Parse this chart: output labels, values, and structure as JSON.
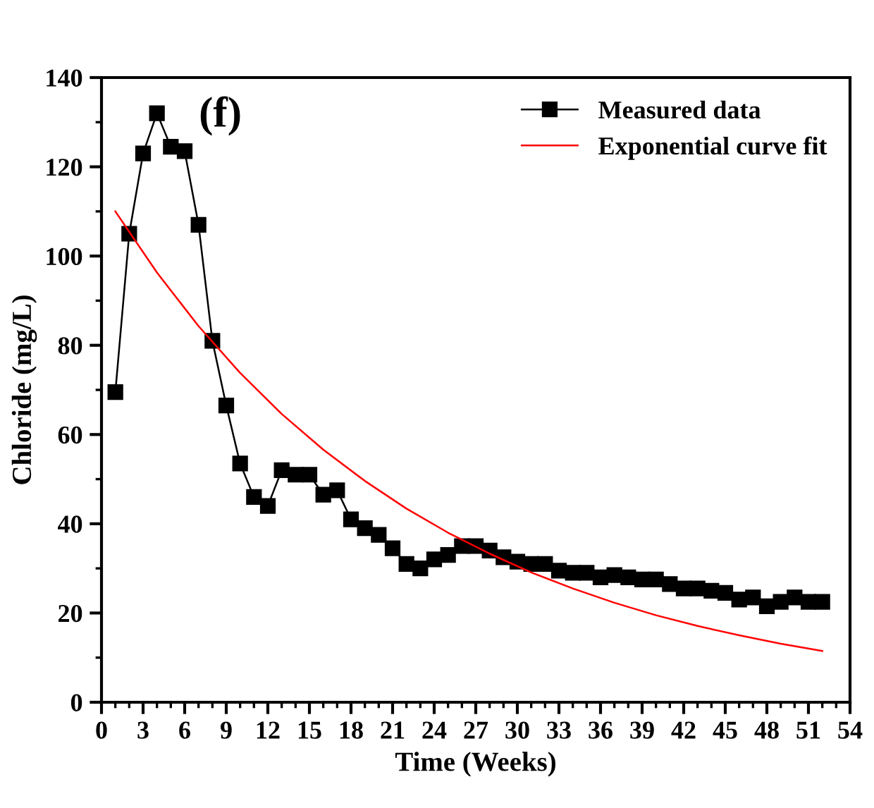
{
  "chart_data": {
    "type": "line",
    "xlabel": "Time (Weeks)",
    "ylabel": "Chloride (mg/L)",
    "annotations": [
      "(f)"
    ],
    "xlim": [
      0,
      54
    ],
    "xticks": [
      0,
      3,
      6,
      9,
      12,
      15,
      18,
      21,
      24,
      27,
      30,
      33,
      36,
      39,
      42,
      45,
      48,
      51,
      54
    ],
    "ylim": [
      0,
      140
    ],
    "yticks": [
      0,
      20,
      40,
      60,
      80,
      100,
      120,
      140
    ],
    "grid": false,
    "legend": "top right",
    "series": [
      {
        "name": "Measured data",
        "color": "#000000",
        "marker": "square",
        "line_style": "solid",
        "x": [
          1,
          2,
          3,
          4,
          5,
          6,
          7,
          8,
          9,
          10,
          11,
          12,
          13,
          14,
          15,
          16,
          17,
          18,
          19,
          20,
          21,
          22,
          23,
          24,
          25,
          26,
          27,
          28,
          29,
          30,
          31,
          32,
          33,
          34,
          35,
          36,
          37,
          38,
          39,
          40,
          41,
          42,
          43,
          44,
          45,
          46,
          47,
          48,
          49,
          50,
          51,
          52
        ],
        "values": [
          69.5,
          105,
          123,
          132,
          124.5,
          123.5,
          107,
          81,
          66.5,
          53.5,
          46,
          44,
          52,
          51,
          51,
          46.5,
          47.5,
          41,
          39,
          37.5,
          34.5,
          31,
          30,
          32,
          33,
          35,
          35,
          34,
          32.5,
          31.5,
          31,
          31,
          29.5,
          29,
          29,
          28,
          28.5,
          28,
          27.5,
          27.5,
          26.5,
          25.5,
          25.5,
          25,
          24.5,
          23,
          23.5,
          21.5,
          22.5,
          23.5,
          22.5,
          22.5
        ]
      },
      {
        "name": "Exponential curve fit",
        "color": "#ff0000",
        "marker": "none",
        "line_style": "solid",
        "x": [
          1,
          4,
          7,
          10,
          13,
          16,
          19,
          22,
          25,
          28,
          31,
          34,
          37,
          40,
          43,
          46,
          49,
          52
        ],
        "values": [
          110.0,
          96.3,
          84.3,
          73.8,
          64.6,
          56.6,
          49.6,
          43.4,
          38.0,
          33.3,
          29.1,
          25.5,
          22.3,
          19.5,
          17.1,
          15.0,
          13.1,
          11.5
        ]
      }
    ]
  }
}
